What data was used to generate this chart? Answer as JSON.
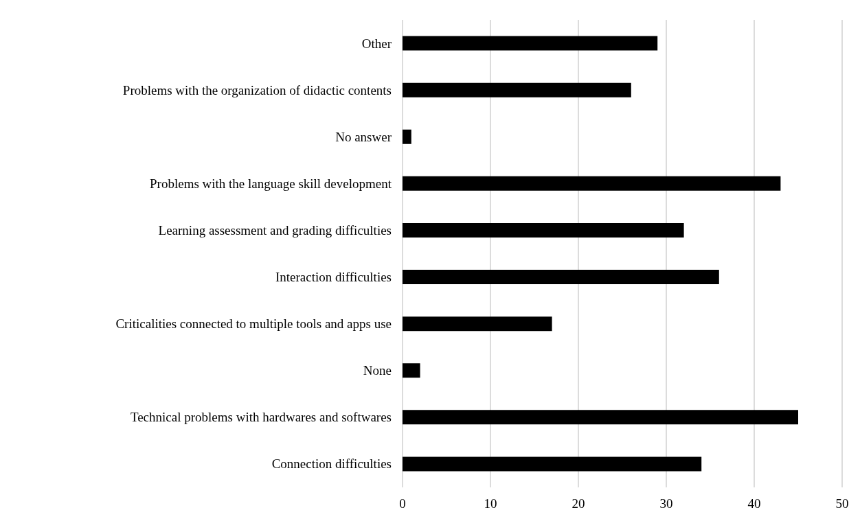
{
  "chart_data": {
    "type": "bar",
    "orientation": "horizontal",
    "categories": [
      "Other",
      "Problems with the organization of didactic contents",
      "No answer",
      "Problems with the language skill development",
      "Learning assessment and grading difficulties",
      "Interaction difficulties",
      "Criticalities connected to multiple tools and apps use",
      "None",
      "Technical problems with hardwares and softwares",
      "Connection difficulties"
    ],
    "values": [
      29,
      26,
      1,
      43,
      32,
      36,
      17,
      2,
      45,
      34
    ],
    "color": "#000000",
    "xlim": [
      0,
      50
    ],
    "xticks": [
      0,
      10,
      20,
      30,
      40,
      50
    ],
    "grid": "x"
  }
}
